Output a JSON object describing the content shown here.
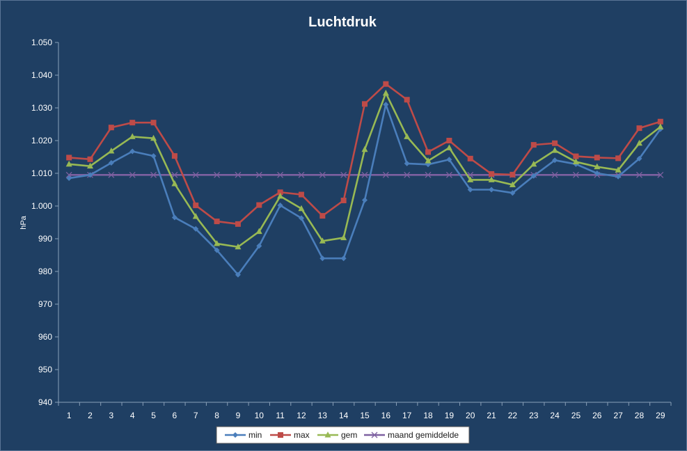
{
  "chart_data": {
    "type": "line",
    "title": "Luchtdruk",
    "xlabel": "",
    "ylabel": "hPa",
    "x": [
      1,
      2,
      3,
      4,
      5,
      6,
      7,
      8,
      9,
      10,
      11,
      12,
      13,
      14,
      15,
      16,
      17,
      18,
      19,
      20,
      21,
      22,
      23,
      24,
      25,
      26,
      27,
      28,
      29
    ],
    "ylim": [
      940,
      1050
    ],
    "yticks": [
      "940",
      "950",
      "960",
      "970",
      "980",
      "990",
      "1.000",
      "1.010",
      "1.020",
      "1.030",
      "1.040",
      "1.050"
    ],
    "grid": false,
    "legend_position": "bottom",
    "series": [
      {
        "name": "min",
        "color": "#4a7ebb",
        "marker": "diamond",
        "values": [
          1008.5,
          1009.5,
          1013.2,
          1016.7,
          1015.3,
          996.5,
          993.0,
          986.5,
          979.0,
          987.8,
          1000.2,
          996.3,
          984.0,
          984.0,
          1001.8,
          1031.0,
          1013.0,
          1012.7,
          1014.2,
          1005.0,
          1005.0,
          1004.0,
          1009.2,
          1014.0,
          1012.8,
          1010.0,
          1009.0,
          1014.5,
          1023.5
        ]
      },
      {
        "name": "max",
        "color": "#be4b48",
        "marker": "square",
        "values": [
          1014.8,
          1014.3,
          1024.0,
          1025.5,
          1025.5,
          1015.3,
          1000.2,
          995.3,
          994.5,
          1000.3,
          1004.2,
          1003.5,
          997.0,
          1001.7,
          1031.2,
          1037.3,
          1032.5,
          1016.5,
          1020.0,
          1014.5,
          1009.8,
          1009.6,
          1018.7,
          1019.2,
          1015.2,
          1014.8,
          1014.6,
          1023.8,
          1025.8
        ]
      },
      {
        "name": "gem",
        "color": "#98b954",
        "marker": "triangle",
        "values": [
          1012.8,
          1012.2,
          1016.8,
          1021.2,
          1020.7,
          1006.8,
          996.8,
          988.5,
          987.5,
          992.2,
          1003.0,
          999.2,
          989.3,
          990.3,
          1017.3,
          1034.5,
          1021.2,
          1013.8,
          1017.8,
          1008.0,
          1008.0,
          1006.5,
          1012.8,
          1017.0,
          1013.5,
          1012.0,
          1011.0,
          1019.2,
          1024.2
        ]
      },
      {
        "name": "maand gemiddelde",
        "color": "#7d60a0",
        "marker": "x",
        "values": [
          1009.5,
          1009.5,
          1009.5,
          1009.5,
          1009.5,
          1009.5,
          1009.5,
          1009.5,
          1009.5,
          1009.5,
          1009.5,
          1009.5,
          1009.5,
          1009.5,
          1009.5,
          1009.5,
          1009.5,
          1009.5,
          1009.5,
          1009.5,
          1009.5,
          1009.5,
          1009.5,
          1009.5,
          1009.5,
          1009.5,
          1009.5,
          1009.5,
          1009.5
        ]
      }
    ]
  }
}
